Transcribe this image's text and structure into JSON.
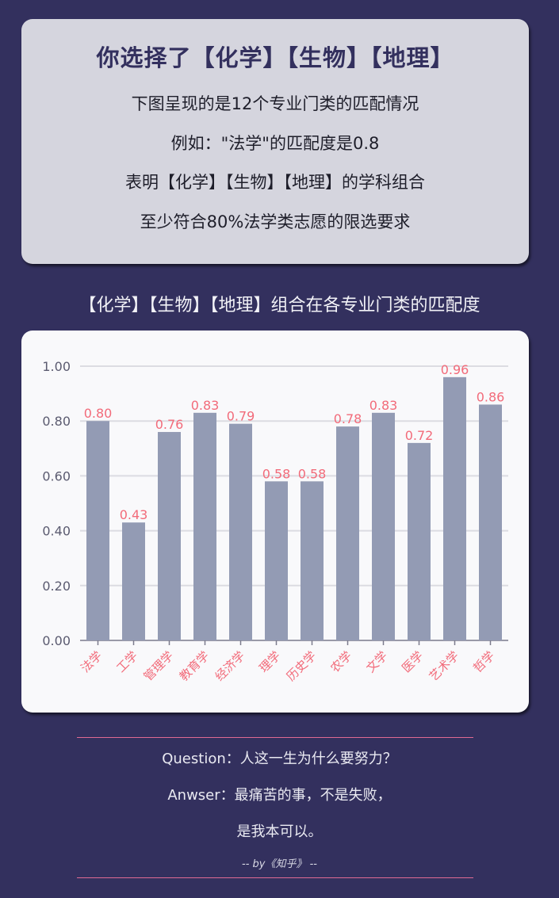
{
  "intro": {
    "title": "你选择了【化学】【生物】【地理】",
    "lines": [
      "下图呈现的是12个专业门类的匹配情况",
      "例如：\"法学\"的匹配度是0.8",
      "表明【化学】【生物】【地理】的学科组合",
      "至少符合80%法学类志愿的限选要求"
    ]
  },
  "chart_data": {
    "type": "bar",
    "title": "【化学】【生物】【地理】组合在各专业门类的匹配度",
    "categories": [
      "法学",
      "工学",
      "管理学",
      "教育学",
      "经济学",
      "理学",
      "历史学",
      "农学",
      "文学",
      "医学",
      "艺术学",
      "哲学"
    ],
    "values": [
      0.8,
      0.43,
      0.76,
      0.83,
      0.79,
      0.58,
      0.58,
      0.78,
      0.83,
      0.72,
      0.96,
      0.86
    ],
    "value_labels": [
      "0.80",
      "0.43",
      "0.76",
      "0.83",
      "0.79",
      "0.58",
      "0.58",
      "0.78",
      "0.83",
      "0.72",
      "0.96",
      "0.86"
    ],
    "yticks": [
      "0.00",
      "0.20",
      "0.40",
      "0.60",
      "0.80",
      "1.00"
    ],
    "ylim": [
      0,
      1.0
    ],
    "xlabel": "",
    "ylabel": "",
    "grid": true,
    "colors": {
      "bar": "#939bb4",
      "label": "#f26b7a",
      "grid": "#dcdce2",
      "axis": "#7b7b8c"
    }
  },
  "footer": {
    "question": "Question：人这一生为什么要努力？",
    "answer": "Anwser：最痛苦的事，不是失败，",
    "answer2": "是我本可以。",
    "by": "-- by《知乎》 --"
  }
}
